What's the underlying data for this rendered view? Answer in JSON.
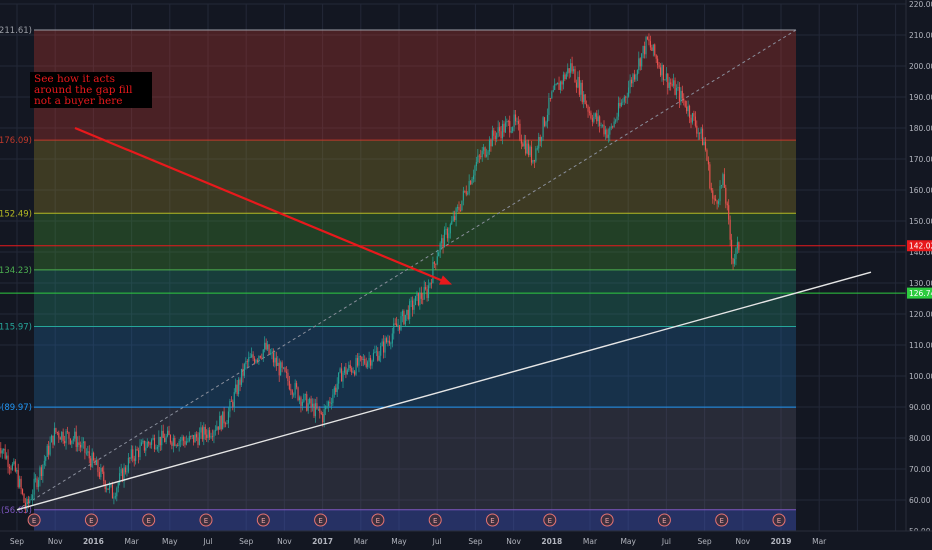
{
  "chart_data": {
    "type": "candlestick",
    "title": "",
    "ylim": [
      50,
      220
    ],
    "y_ticks": [
      "220.00",
      "210.00",
      "200.00",
      "190.00",
      "180.00",
      "170.00",
      "160.00",
      "150.00",
      "140.00",
      "130.00",
      "120.00",
      "110.00",
      "100.00",
      "90.00",
      "80.00",
      "70.00",
      "60.00",
      "50.00"
    ],
    "x_ticks": [
      "Sep",
      "Nov",
      "2016",
      "Mar",
      "May",
      "Jul",
      "Sep",
      "Nov",
      "2017",
      "Mar",
      "May",
      "Jul",
      "Sep",
      "Nov",
      "2018",
      "Mar",
      "May",
      "Jul",
      "Sep",
      "Nov",
      "2019",
      "Mar"
    ],
    "fib_levels": [
      {
        "label": "0(211.61)",
        "value": 211.61,
        "color": "#9b9ea6"
      },
      {
        "label": "6(176.09)",
        "value": 176.09,
        "color": "#c0392b"
      },
      {
        "label": "2(152.49)",
        "value": 152.49,
        "color": "#b5b823"
      },
      {
        "label": "5(134.23)",
        "value": 134.23,
        "color": "#4caf50"
      },
      {
        "label": "8(115.97)",
        "value": 115.97,
        "color": "#26a69a"
      },
      {
        "label": "86(89.97)",
        "value": 89.97,
        "color": "#2196f3"
      },
      {
        "label": "1(56.85)",
        "value": 56.85,
        "color": "#7e57c2"
      }
    ],
    "price_labels": [
      {
        "text": "142.02",
        "value": 142.02,
        "color": "#e8191c"
      },
      {
        "text": "126.74",
        "value": 126.74,
        "color": "#2ecc40"
      }
    ],
    "trendline": {
      "x": [
        "2015-09",
        "2019-01"
      ],
      "y": [
        56.85,
        133.5
      ],
      "color": "#e6e6e6"
    },
    "annotation": {
      "text": "See how it acts around the gap fill  not a buyer here",
      "color": "#e8191c"
    },
    "arrow": {
      "from": [
        "2015-11",
        180
      ],
      "to": [
        "2017-05",
        129.5
      ],
      "color": "#e8191c"
    },
    "events_label": "E",
    "events": [
      "2015-10",
      "2016-01",
      "2016-04",
      "2016-07",
      "2016-10",
      "2017-01",
      "2017-04",
      "2017-07",
      "2017-10",
      "2018-01",
      "2018-04",
      "2018-07",
      "2018-10",
      "2019-01"
    ],
    "price_path": [
      [
        "2015-08",
        79
      ],
      [
        "2015-09",
        68
      ],
      [
        "2015-09-15",
        57
      ],
      [
        "2015-10",
        66
      ],
      [
        "2015-11",
        82
      ],
      [
        "2015-12",
        80
      ],
      [
        "2016-01",
        72
      ],
      [
        "2016-02",
        62
      ],
      [
        "2016-03",
        74
      ],
      [
        "2016-04",
        79
      ],
      [
        "2016-05",
        80
      ],
      [
        "2016-06",
        79
      ],
      [
        "2016-07",
        82
      ],
      [
        "2016-08",
        87
      ],
      [
        "2016-09",
        104
      ],
      [
        "2016-10",
        109
      ],
      [
        "2016-11",
        100
      ],
      [
        "2016-12",
        92
      ],
      [
        "2017-01",
        87
      ],
      [
        "2017-02",
        101
      ],
      [
        "2017-03",
        104
      ],
      [
        "2017-04",
        108
      ],
      [
        "2017-05",
        117
      ],
      [
        "2017-06",
        125
      ],
      [
        "2017-06-15",
        127
      ],
      [
        "2017-07",
        140
      ],
      [
        "2017-08",
        152
      ],
      [
        "2017-09",
        168
      ],
      [
        "2017-10",
        178
      ],
      [
        "2017-11",
        182
      ],
      [
        "2017-12",
        170
      ],
      [
        "2018-01",
        190
      ],
      [
        "2018-02",
        200
      ],
      [
        "2018-03",
        185
      ],
      [
        "2018-04",
        178
      ],
      [
        "2018-05",
        193
      ],
      [
        "2018-06",
        208
      ],
      [
        "2018-07",
        196
      ],
      [
        "2018-08",
        188
      ],
      [
        "2018-09",
        175
      ],
      [
        "2018-09-15",
        155
      ],
      [
        "2018-10",
        163
      ],
      [
        "2018-10-15",
        137
      ],
      [
        "2018-10-25",
        142
      ]
    ]
  }
}
